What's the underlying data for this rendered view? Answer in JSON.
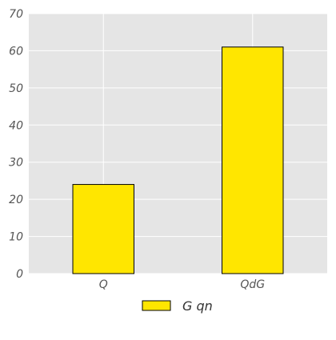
{
  "chart_data": {
    "type": "bar",
    "title": "",
    "xlabel": "",
    "ylabel": "",
    "categories": [
      "Q",
      "QdG"
    ],
    "series": [
      {
        "name": "G qn",
        "values": [
          24,
          61
        ]
      }
    ],
    "ylim": [
      0,
      70
    ],
    "yticks": [
      0,
      10,
      20,
      30,
      40,
      50,
      60,
      70
    ],
    "grid": true,
    "legend_position": "bottom-center",
    "colors": {
      "bar_fill": "#FFE600",
      "bar_edge": "#000000",
      "plot_background": "#E5E5E5",
      "grid": "#FFFFFF"
    }
  }
}
